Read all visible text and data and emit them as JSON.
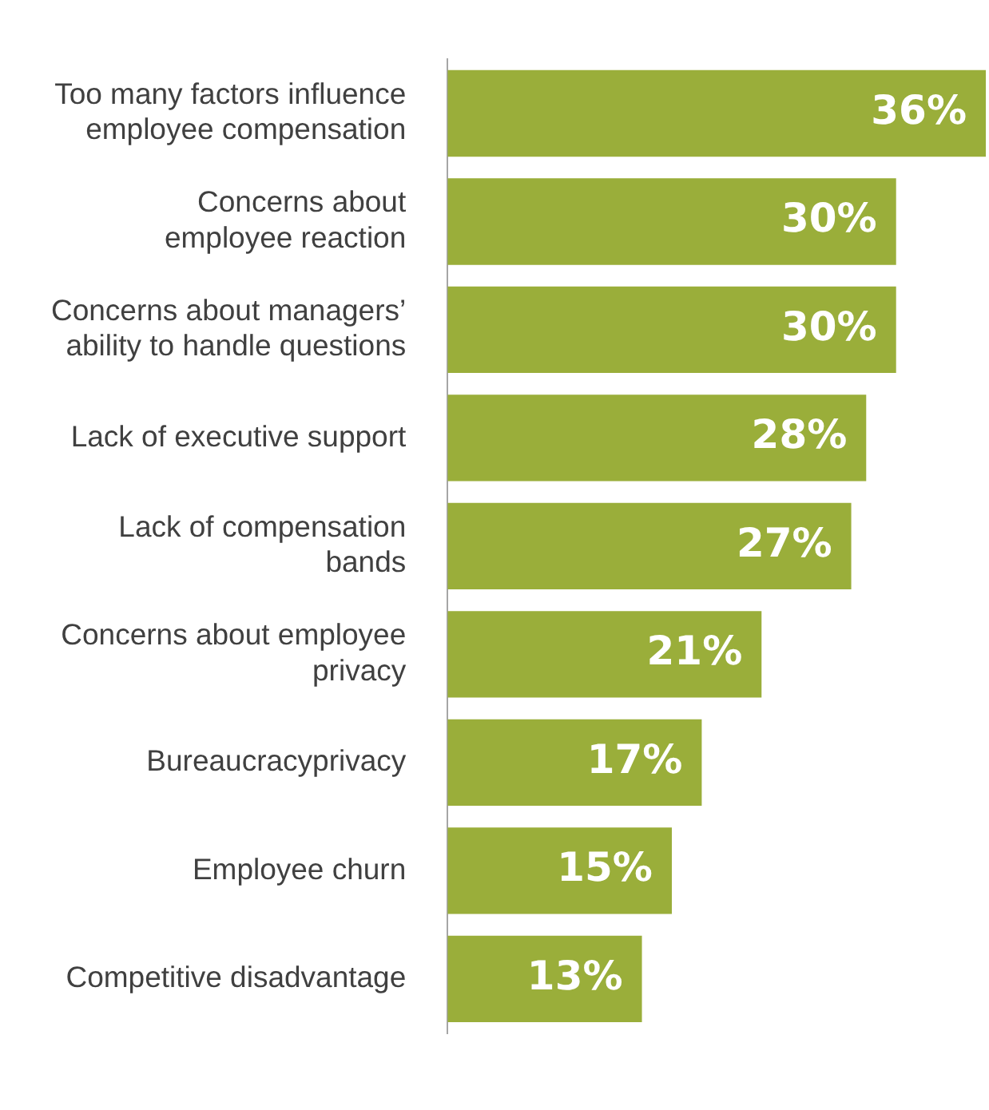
{
  "chart_data": {
    "type": "bar",
    "orientation": "horizontal",
    "categories": [
      "Too many factors influence\nemployee compensation",
      "Concerns about\nemployee reaction",
      "Concerns about managers’\nability to handle questions",
      "Lack of executive support",
      "Lack of compensation\nbands",
      "Concerns about employee\nprivacy",
      "Bureaucracyprivacy",
      "Employee churn",
      "Competitive disadvantage"
    ],
    "values": [
      36,
      30,
      30,
      28,
      27,
      21,
      17,
      15,
      13
    ],
    "value_labels": [
      "36%",
      "30%",
      "30%",
      "28%",
      "27%",
      "21%",
      "17%",
      "15%",
      "13%"
    ],
    "color": "#9aae3a"
  }
}
